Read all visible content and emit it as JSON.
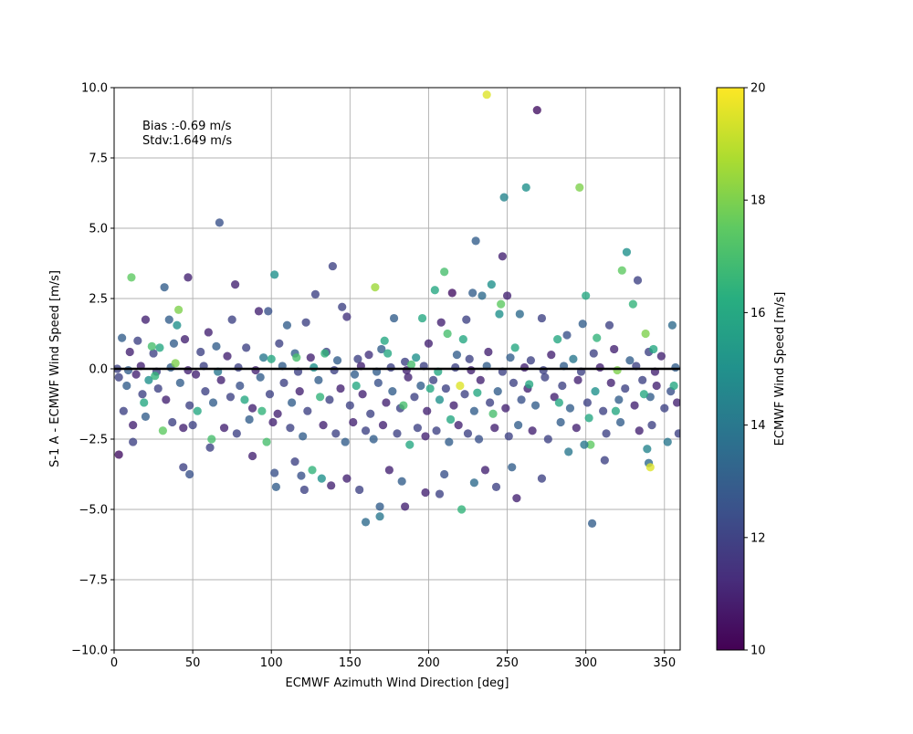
{
  "chart_data": {
    "type": "scatter",
    "title": "",
    "xlabel": "ECMWF Azimuth Wind Direction [deg]",
    "ylabel": "S-1 A - ECMWF Wind Speed [m/s]",
    "xlim": [
      0,
      360
    ],
    "ylim": [
      -10,
      10
    ],
    "x_ticks": [
      0,
      50,
      100,
      150,
      200,
      250,
      300,
      350
    ],
    "x_tick_labels": [
      "0",
      "50",
      "100",
      "150",
      "200",
      "250",
      "300",
      "350"
    ],
    "y_ticks": [
      -10,
      -7.5,
      -5,
      -2.5,
      0,
      2.5,
      5,
      7.5,
      10
    ],
    "y_tick_labels": [
      "−10.0",
      "−7.5",
      "−5.0",
      "−2.5",
      "0.0",
      "2.5",
      "5.0",
      "7.5",
      "10.0"
    ],
    "grid": true,
    "reference_line": {
      "y": 0,
      "color": "#000000"
    },
    "annotations": [
      "Bias :-0.69 m/s",
      "Stdv:1.649 m/s"
    ],
    "colorbar": {
      "label": "ECMWF Wind Speed [m/s]",
      "range": [
        10,
        20
      ],
      "ticks": [
        10,
        12,
        14,
        16,
        18,
        20
      ],
      "tick_labels": [
        "10",
        "12",
        "14",
        "16",
        "18",
        "20"
      ],
      "colormap": "viridis"
    },
    "points": [
      [
        237,
        9.75,
        19.5
      ],
      [
        269,
        9.2,
        10.5
      ],
      [
        248,
        6.1,
        14.5
      ],
      [
        262,
        6.45,
        15.0
      ],
      [
        296,
        6.45,
        18.0
      ],
      [
        67,
        5.2,
        12.5
      ],
      [
        230,
        4.55,
        13.0
      ],
      [
        247,
        4.0,
        11.0
      ],
      [
        326,
        4.15,
        15.0
      ],
      [
        139,
        3.65,
        12.0
      ],
      [
        11,
        3.25,
        17.5
      ],
      [
        47,
        3.25,
        11.0
      ],
      [
        102,
        3.35,
        15.0
      ],
      [
        77,
        3.0,
        11.0
      ],
      [
        32,
        2.9,
        13.0
      ],
      [
        128,
        2.65,
        12.0
      ],
      [
        166,
        2.9,
        18.5
      ],
      [
        210,
        3.45,
        17.0
      ],
      [
        323,
        3.5,
        17.5
      ],
      [
        333,
        3.15,
        12.0
      ],
      [
        228,
        2.7,
        13.0
      ],
      [
        240,
        3.0,
        15.0
      ],
      [
        250,
        2.6,
        11.0
      ],
      [
        300,
        2.6,
        16.0
      ],
      [
        41,
        2.1,
        18.0
      ],
      [
        330,
        2.3,
        16.5
      ],
      [
        145,
        2.2,
        12.0
      ],
      [
        204,
        2.8,
        16.0
      ],
      [
        215,
        2.7,
        10.5
      ],
      [
        234,
        2.6,
        13.5
      ],
      [
        20,
        1.75,
        11.0
      ],
      [
        35,
        1.75,
        13.0
      ],
      [
        40,
        1.55,
        15.0
      ],
      [
        60,
        1.3,
        11.0
      ],
      [
        75,
        1.75,
        12.0
      ],
      [
        92,
        2.05,
        11.0
      ],
      [
        98,
        2.05,
        12.5
      ],
      [
        110,
        1.55,
        13.0
      ],
      [
        122,
        1.65,
        12.0
      ],
      [
        148,
        1.85,
        11.5
      ],
      [
        178,
        1.8,
        13.0
      ],
      [
        196,
        1.8,
        16.0
      ],
      [
        208,
        1.65,
        11.0
      ],
      [
        224,
        1.75,
        12.0
      ],
      [
        245,
        1.95,
        15.0
      ],
      [
        258,
        1.95,
        13.5
      ],
      [
        272,
        1.8,
        12.0
      ],
      [
        288,
        1.2,
        12.5
      ],
      [
        298,
        1.6,
        13.0
      ],
      [
        315,
        1.55,
        12.0
      ],
      [
        355,
        1.55,
        13.5
      ],
      [
        15,
        1.0,
        12.0
      ],
      [
        5,
        1.1,
        13.0
      ],
      [
        10,
        0.6,
        11.0
      ],
      [
        25,
        0.55,
        12.0
      ],
      [
        38,
        0.9,
        13.0
      ],
      [
        45,
        1.05,
        11.0
      ],
      [
        55,
        0.6,
        12.0
      ],
      [
        65,
        0.8,
        13.0
      ],
      [
        72,
        0.45,
        11.0
      ],
      [
        84,
        0.75,
        12.0
      ],
      [
        95,
        0.4,
        14.0
      ],
      [
        105,
        0.9,
        12.0
      ],
      [
        115,
        0.55,
        13.0
      ],
      [
        125,
        0.4,
        11.0
      ],
      [
        135,
        0.6,
        12.0
      ],
      [
        142,
        0.3,
        13.0
      ],
      [
        155,
        0.35,
        12.0
      ],
      [
        162,
        0.5,
        11.5
      ],
      [
        170,
        0.7,
        13.0
      ],
      [
        185,
        0.25,
        12.0
      ],
      [
        192,
        0.4,
        15.0
      ],
      [
        200,
        0.9,
        11.0
      ],
      [
        218,
        0.5,
        13.0
      ],
      [
        226,
        0.35,
        12.0
      ],
      [
        238,
        0.6,
        11.0
      ],
      [
        252,
        0.4,
        13.0
      ],
      [
        265,
        0.3,
        12.0
      ],
      [
        278,
        0.5,
        11.0
      ],
      [
        292,
        0.35,
        14.0
      ],
      [
        305,
        0.55,
        12.0
      ],
      [
        318,
        0.7,
        11.0
      ],
      [
        328,
        0.3,
        13.0
      ],
      [
        340,
        0.6,
        12.0
      ],
      [
        348,
        0.45,
        11.0
      ],
      [
        3,
        -0.3,
        12.0
      ],
      [
        8,
        -0.6,
        13.0
      ],
      [
        14,
        -0.2,
        11.0
      ],
      [
        18,
        -0.9,
        12.0
      ],
      [
        22,
        -0.4,
        15.0
      ],
      [
        28,
        -0.7,
        12.0
      ],
      [
        33,
        -1.1,
        11.0
      ],
      [
        42,
        -0.5,
        13.0
      ],
      [
        48,
        -1.3,
        12.0
      ],
      [
        52,
        -0.2,
        11.0
      ],
      [
        58,
        -0.8,
        12.0
      ],
      [
        63,
        -1.2,
        13.0
      ],
      [
        68,
        -0.4,
        11.0
      ],
      [
        74,
        -1.0,
        12.0
      ],
      [
        80,
        -0.6,
        12.5
      ],
      [
        88,
        -1.4,
        11.0
      ],
      [
        93,
        -0.3,
        13.0
      ],
      [
        99,
        -0.9,
        12.0
      ],
      [
        104,
        -1.6,
        11.0
      ],
      [
        108,
        -0.5,
        12.0
      ],
      [
        113,
        -1.2,
        13.0
      ],
      [
        118,
        -0.8,
        11.0
      ],
      [
        123,
        -1.5,
        12.0
      ],
      [
        130,
        -0.4,
        13.0
      ],
      [
        137,
        -1.1,
        12.0
      ],
      [
        144,
        -0.7,
        11.0
      ],
      [
        150,
        -1.3,
        12.0
      ],
      [
        153,
        -0.2,
        13.0
      ],
      [
        158,
        -0.9,
        11.0
      ],
      [
        163,
        -1.6,
        12.0
      ],
      [
        168,
        -0.5,
        12.5
      ],
      [
        173,
        -1.2,
        11.0
      ],
      [
        177,
        -0.8,
        13.0
      ],
      [
        182,
        -1.4,
        12.0
      ],
      [
        187,
        -0.3,
        11.0
      ],
      [
        191,
        -1.0,
        12.0
      ],
      [
        195,
        -0.6,
        13.0
      ],
      [
        199,
        -1.5,
        11.0
      ],
      [
        203,
        -0.4,
        12.0
      ],
      [
        207,
        -1.1,
        15.0
      ],
      [
        211,
        -0.7,
        12.0
      ],
      [
        216,
        -1.3,
        11.0
      ],
      [
        220,
        -0.6,
        19.5
      ],
      [
        223,
        -0.9,
        12.0
      ],
      [
        229,
        -1.5,
        13.0
      ],
      [
        233,
        -0.4,
        11.0
      ],
      [
        239,
        -1.2,
        12.0
      ],
      [
        244,
        -0.8,
        13.0
      ],
      [
        249,
        -1.4,
        11.0
      ],
      [
        254,
        -0.5,
        12.0
      ],
      [
        259,
        -1.1,
        12.5
      ],
      [
        263,
        -0.7,
        11.0
      ],
      [
        268,
        -1.3,
        13.0
      ],
      [
        274,
        -0.3,
        12.0
      ],
      [
        280,
        -1.0,
        11.0
      ],
      [
        285,
        -0.6,
        12.0
      ],
      [
        290,
        -1.4,
        13.0
      ],
      [
        295,
        -0.4,
        11.0
      ],
      [
        301,
        -1.2,
        12.0
      ],
      [
        306,
        -0.8,
        15.0
      ],
      [
        311,
        -1.5,
        12.0
      ],
      [
        316,
        -0.5,
        11.0
      ],
      [
        321,
        -1.1,
        13.0
      ],
      [
        325,
        -0.7,
        12.0
      ],
      [
        331,
        -1.3,
        11.0
      ],
      [
        336,
        -0.4,
        12.0
      ],
      [
        341,
        -1.0,
        13.0
      ],
      [
        345,
        -0.6,
        11.0
      ],
      [
        350,
        -1.4,
        12.0
      ],
      [
        354,
        -0.8,
        12.5
      ],
      [
        358,
        -1.2,
        11.0
      ],
      [
        6,
        -1.5,
        12.0
      ],
      [
        12,
        -2.0,
        11.0
      ],
      [
        20,
        -1.7,
        13.0
      ],
      [
        31,
        -2.2,
        17.5
      ],
      [
        37,
        -1.9,
        12.0
      ],
      [
        44,
        -2.1,
        11.0
      ],
      [
        50,
        -2.0,
        12.0
      ],
      [
        62,
        -2.5,
        17.0
      ],
      [
        70,
        -2.1,
        11.0
      ],
      [
        78,
        -2.3,
        12.0
      ],
      [
        86,
        -1.8,
        13.0
      ],
      [
        97,
        -2.6,
        17.0
      ],
      [
        101,
        -1.9,
        11.0
      ],
      [
        112,
        -2.1,
        12.0
      ],
      [
        120,
        -2.4,
        13.0
      ],
      [
        133,
        -2.0,
        11.0
      ],
      [
        141,
        -2.3,
        12.0
      ],
      [
        147,
        -2.6,
        13.0
      ],
      [
        152,
        -1.9,
        11.0
      ],
      [
        160,
        -2.2,
        12.0
      ],
      [
        165,
        -2.5,
        13.0
      ],
      [
        171,
        -2.0,
        11.0
      ],
      [
        180,
        -2.3,
        12.0
      ],
      [
        188,
        -2.7,
        16.0
      ],
      [
        193,
        -2.1,
        12.0
      ],
      [
        198,
        -2.4,
        11.0
      ],
      [
        205,
        -2.2,
        12.0
      ],
      [
        213,
        -2.6,
        13.0
      ],
      [
        219,
        -2.0,
        11.0
      ],
      [
        225,
        -2.3,
        12.0
      ],
      [
        232,
        -2.5,
        12.5
      ],
      [
        242,
        -2.1,
        11.0
      ],
      [
        251,
        -2.4,
        12.0
      ],
      [
        257,
        -2.0,
        13.0
      ],
      [
        266,
        -2.2,
        11.0
      ],
      [
        276,
        -2.5,
        12.0
      ],
      [
        284,
        -1.9,
        13.0
      ],
      [
        294,
        -2.1,
        11.0
      ],
      [
        303,
        -2.7,
        17.5
      ],
      [
        313,
        -2.3,
        12.0
      ],
      [
        322,
        -1.9,
        13.0
      ],
      [
        334,
        -2.2,
        11.0
      ],
      [
        342,
        -2.0,
        12.0
      ],
      [
        352,
        -2.6,
        14.0
      ],
      [
        359,
        -2.3,
        12.0
      ],
      [
        3,
        -3.05,
        10.5
      ],
      [
        12,
        -2.6,
        12.0
      ],
      [
        44,
        -3.5,
        12.0
      ],
      [
        48,
        -3.75,
        12.5
      ],
      [
        61,
        -2.8,
        12.0
      ],
      [
        88,
        -3.1,
        11.0
      ],
      [
        102,
        -3.7,
        12.5
      ],
      [
        103,
        -4.2,
        13.0
      ],
      [
        115,
        -3.3,
        12.0
      ],
      [
        119,
        -3.8,
        12.5
      ],
      [
        121,
        -4.3,
        12.0
      ],
      [
        126,
        -3.6,
        16.5
      ],
      [
        132,
        -3.9,
        15.0
      ],
      [
        138,
        -4.15,
        11.0
      ],
      [
        148,
        -3.9,
        11.0
      ],
      [
        156,
        -4.3,
        12.0
      ],
      [
        160,
        -5.45,
        13.5
      ],
      [
        169,
        -4.9,
        13.0
      ],
      [
        169,
        -5.25,
        14.0
      ],
      [
        175,
        -3.6,
        11.0
      ],
      [
        183,
        -4.0,
        13.0
      ],
      [
        185,
        -4.9,
        11.0
      ],
      [
        198,
        -4.4,
        11.0
      ],
      [
        207,
        -4.45,
        12.0
      ],
      [
        210,
        -3.75,
        12.5
      ],
      [
        221,
        -5.0,
        16.5
      ],
      [
        229,
        -4.05,
        13.5
      ],
      [
        236,
        -3.6,
        11.0
      ],
      [
        243,
        -4.2,
        12.0
      ],
      [
        253,
        -3.5,
        13.0
      ],
      [
        256,
        -4.6,
        11.0
      ],
      [
        272,
        -3.9,
        12.0
      ],
      [
        289,
        -2.95,
        14.0
      ],
      [
        299,
        -2.7,
        14.0
      ],
      [
        304,
        -5.5,
        13.0
      ],
      [
        312,
        -3.25,
        12.0
      ],
      [
        340,
        -3.35,
        13.5
      ],
      [
        341,
        -3.5,
        19.5
      ],
      [
        339,
        -2.85,
        14.5
      ],
      [
        2,
        0.0,
        12.0
      ],
      [
        9,
        -0.05,
        13.0
      ],
      [
        17,
        0.1,
        11.0
      ],
      [
        27,
        -0.1,
        12.0
      ],
      [
        36,
        0.05,
        13.0
      ],
      [
        47,
        -0.05,
        11.0
      ],
      [
        57,
        0.1,
        12.0
      ],
      [
        66,
        -0.1,
        14.0
      ],
      [
        79,
        0.05,
        12.0
      ],
      [
        90,
        -0.05,
        11.0
      ],
      [
        107,
        0.1,
        13.0
      ],
      [
        117,
        -0.1,
        12.0
      ],
      [
        127,
        0.05,
        15.0
      ],
      [
        140,
        -0.05,
        12.0
      ],
      [
        157,
        0.1,
        11.0
      ],
      [
        167,
        -0.1,
        13.0
      ],
      [
        176,
        0.05,
        12.0
      ],
      [
        186,
        -0.05,
        11.0
      ],
      [
        197,
        0.1,
        12.0
      ],
      [
        206,
        -0.1,
        16.0
      ],
      [
        217,
        0.05,
        12.0
      ],
      [
        227,
        -0.05,
        11.0
      ],
      [
        237,
        0.1,
        13.0
      ],
      [
        247,
        -0.1,
        12.0
      ],
      [
        261,
        0.05,
        11.0
      ],
      [
        273,
        -0.05,
        12.0
      ],
      [
        286,
        0.1,
        13.0
      ],
      [
        297,
        -0.1,
        12.0
      ],
      [
        309,
        0.05,
        11.0
      ],
      [
        320,
        -0.05,
        18.0
      ],
      [
        332,
        0.1,
        12.0
      ],
      [
        344,
        -0.1,
        11.0
      ],
      [
        357,
        0.05,
        13.0
      ],
      [
        24,
        0.8,
        17.0
      ],
      [
        29,
        0.75,
        16.0
      ],
      [
        39,
        0.2,
        18.0
      ],
      [
        100,
        0.35,
        16.0
      ],
      [
        116,
        0.4,
        17.0
      ],
      [
        134,
        0.55,
        16.5
      ],
      [
        172,
        1.0,
        16.0
      ],
      [
        174,
        0.55,
        16.0
      ],
      [
        189,
        0.15,
        17.0
      ],
      [
        212,
        1.25,
        17.0
      ],
      [
        222,
        1.05,
        16.0
      ],
      [
        246,
        2.3,
        17.5
      ],
      [
        255,
        0.75,
        16.0
      ],
      [
        282,
        1.05,
        16.0
      ],
      [
        307,
        1.1,
        16.5
      ],
      [
        338,
        1.25,
        18.0
      ],
      [
        343,
        0.7,
        16.0
      ],
      [
        19,
        -1.2,
        16.0
      ],
      [
        26,
        -0.25,
        16.5
      ],
      [
        53,
        -1.5,
        16.0
      ],
      [
        83,
        -1.1,
        16.0
      ],
      [
        94,
        -1.5,
        16.5
      ],
      [
        131,
        -1.0,
        16.5
      ],
      [
        154,
        -0.6,
        16.0
      ],
      [
        184,
        -1.3,
        17.0
      ],
      [
        201,
        -0.7,
        16.0
      ],
      [
        214,
        -1.8,
        16.0
      ],
      [
        231,
        -0.85,
        16.0
      ],
      [
        241,
        -1.6,
        17.0
      ],
      [
        264,
        -0.55,
        16.0
      ],
      [
        283,
        -1.2,
        16.0
      ],
      [
        302,
        -1.75,
        16.0
      ],
      [
        319,
        -1.5,
        16.0
      ],
      [
        337,
        -0.9,
        16.0
      ],
      [
        356,
        -0.6,
        16.0
      ]
    ]
  }
}
